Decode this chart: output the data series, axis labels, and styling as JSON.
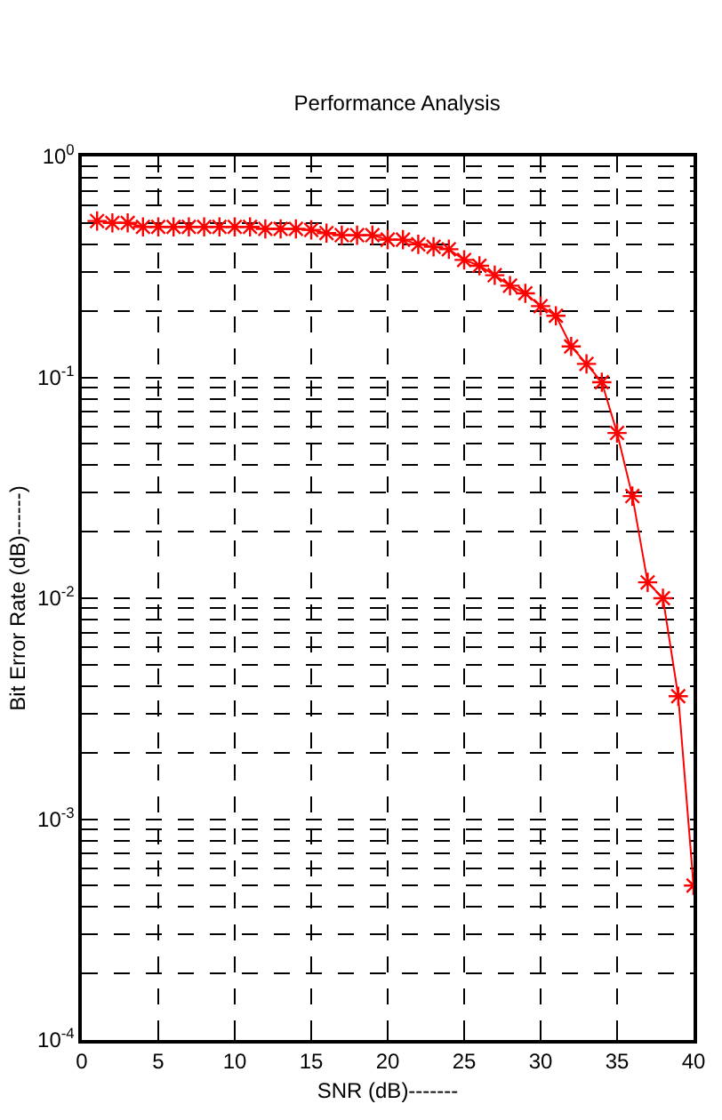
{
  "chart_data": {
    "type": "line",
    "title": "Performance Analysis",
    "xlabel": "SNR (dB)-------",
    "ylabel": "Bit Error Rate (dB)------)",
    "x": [
      1,
      2,
      3,
      4,
      5,
      6,
      7,
      8,
      9,
      10,
      11,
      12,
      13,
      14,
      15,
      16,
      17,
      18,
      19,
      20,
      21,
      22,
      23,
      24,
      25,
      26,
      27,
      28,
      29,
      30,
      31,
      32,
      33,
      34,
      35,
      36,
      37,
      38,
      39,
      40
    ],
    "series": [
      {
        "color": "#ff0000",
        "values": [
          0.51,
          0.5,
          0.5,
          0.48,
          0.48,
          0.48,
          0.48,
          0.48,
          0.48,
          0.48,
          0.48,
          0.47,
          0.47,
          0.47,
          0.465,
          0.45,
          0.44,
          0.44,
          0.44,
          0.42,
          0.42,
          0.4,
          0.39,
          0.38,
          0.34,
          0.32,
          0.29,
          0.26,
          0.24,
          0.21,
          0.19,
          0.138,
          0.115,
          0.095,
          0.056,
          0.029,
          0.0118,
          0.01,
          0.0036,
          0.0005
        ]
      }
    ],
    "log": "y",
    "xlim": [
      0,
      40
    ],
    "xticks": [
      0,
      5,
      10,
      15,
      20,
      25,
      30,
      35,
      40
    ],
    "ylim": [
      0.0001,
      1
    ],
    "yticks": [
      {
        "value": 0.0001,
        "label": "10$^{-4}$"
      },
      {
        "value": 0.001,
        "label": "10$^{-3}$"
      },
      {
        "value": 0.01,
        "label": "10$^{-2}$"
      },
      {
        "value": 0.1,
        "label": "10$^{-1}$"
      },
      {
        "value": 1,
        "label": "10$^{0}$"
      }
    ],
    "grid": true,
    "marker": "cross",
    "line_style": "solid"
  }
}
